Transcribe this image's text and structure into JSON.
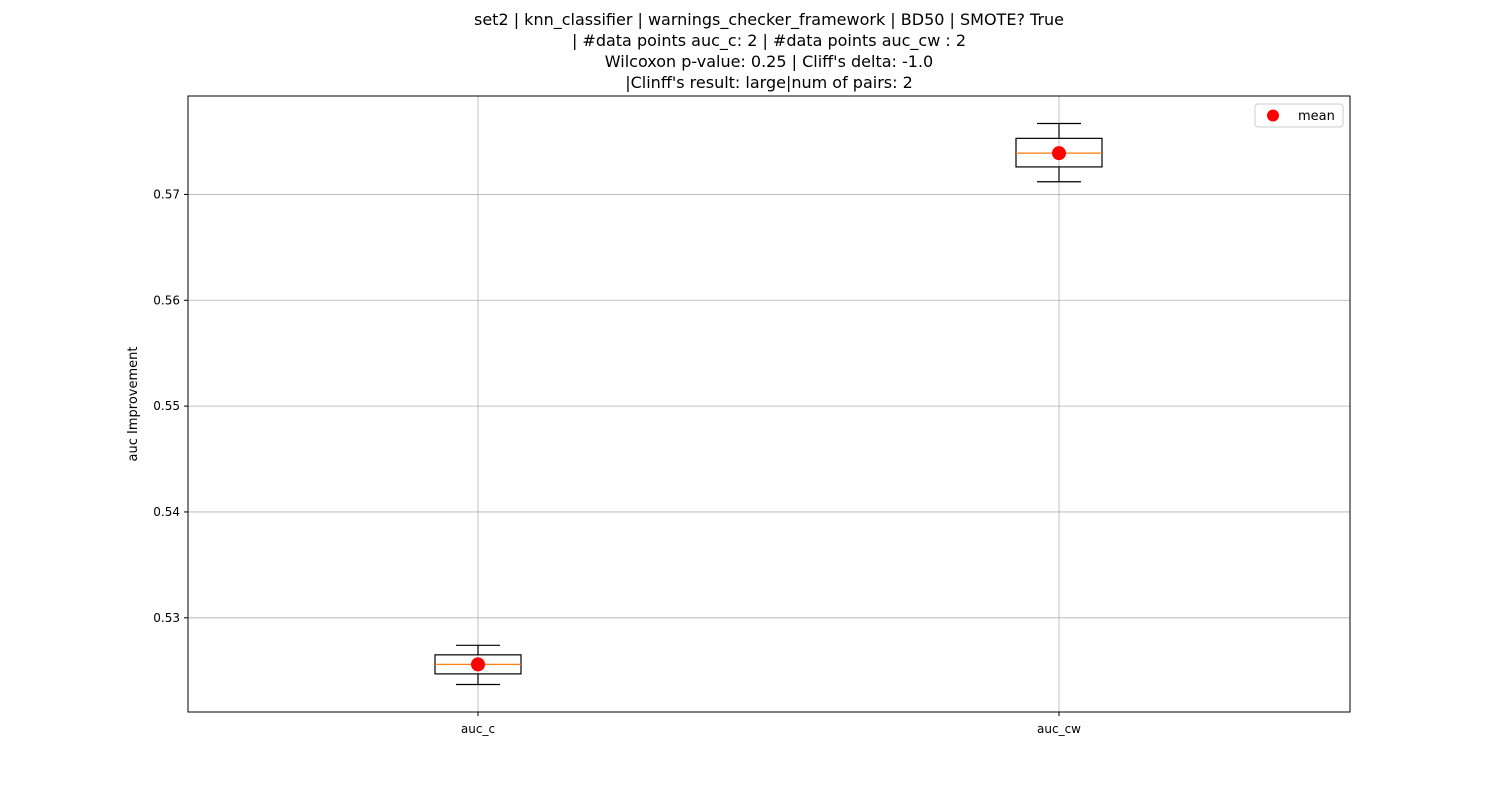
{
  "chart_data": {
    "type": "box",
    "title_lines": [
      "set2 | knn_classifier | warnings_checker_framework | BD50 | SMOTE? True",
      "| #data points auc_c: 2 | #data points auc_cw : 2",
      "Wilcoxon p-value: 0.25 | Cliff's delta: -1.0",
      "|Clinff's result: large|num of pairs: 2"
    ],
    "ylabel": "auc Improvement",
    "xlabel": "",
    "ylim": [
      0.5211,
      0.5793
    ],
    "yticks": [
      0.53,
      0.54,
      0.55,
      0.56,
      0.57
    ],
    "grid": true,
    "legend": {
      "placement": "top-right",
      "entries": [
        "mean"
      ]
    },
    "categories": [
      "auc_c",
      "auc_cw"
    ],
    "boxes": [
      {
        "name": "auc_c",
        "whisker_low": 0.5237,
        "q1": 0.5247,
        "median": 0.5256,
        "q3": 0.5265,
        "whisker_high": 0.5274,
        "mean": 0.5256
      },
      {
        "name": "auc_cw",
        "whisker_low": 0.5712,
        "q1": 0.5726,
        "median": 0.5739,
        "q3": 0.5753,
        "whisker_high": 0.5767,
        "mean": 0.5739
      }
    ],
    "colors": {
      "box": "#000000",
      "median": "#ff7f0e",
      "mean": "#ff0000",
      "grid": "#b0b0b0"
    }
  }
}
